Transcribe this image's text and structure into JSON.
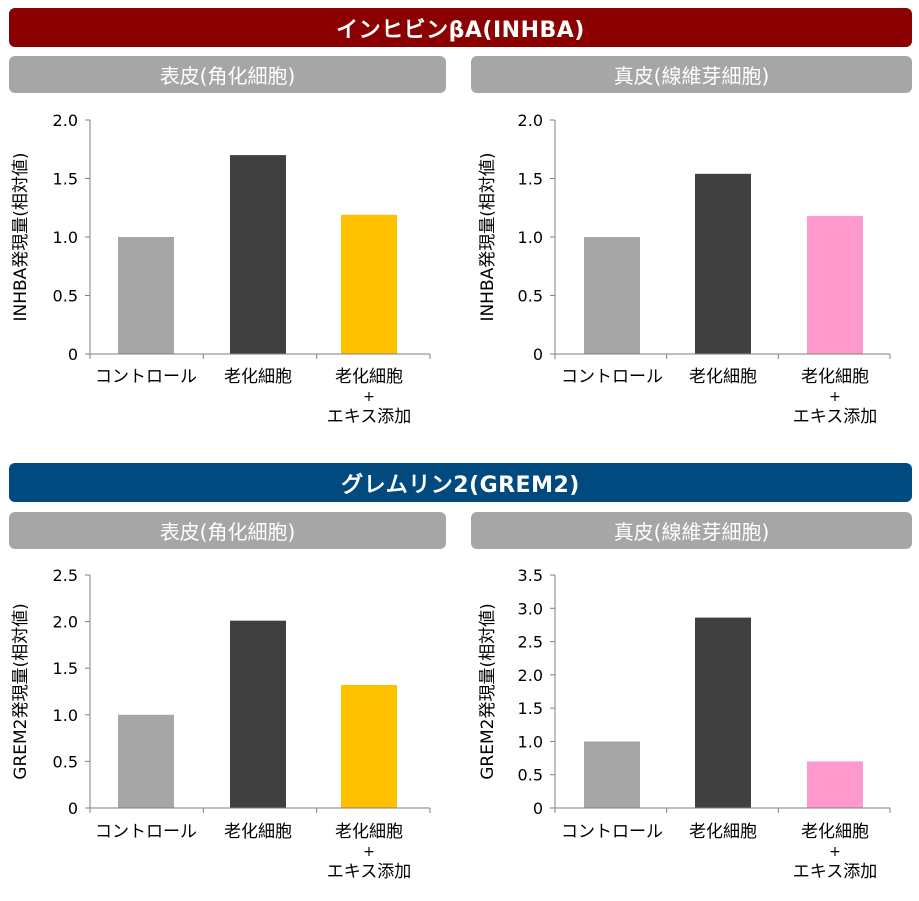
{
  "sections": [
    {
      "title": "インヒビンβA(INHBA)",
      "color": "#8b0000",
      "panels": [
        {
          "label": "表皮(角化細胞)",
          "ylabel": "INHBA発現量(相対値)"
        },
        {
          "label": "真皮(線維芽細胞)",
          "ylabel": "INHBA発現量(相対値)"
        }
      ]
    },
    {
      "title": "グレムリン2(GREM2)",
      "color": "#004a80",
      "panels": [
        {
          "label": "表皮(角化細胞)",
          "ylabel": "GREM2発現量(相対値)"
        },
        {
          "label": "真皮(線維芽細胞)",
          "ylabel": "GREM2発現量(相対値)"
        }
      ]
    }
  ],
  "panel_label_color": "#a6a6a6",
  "chart_data": [
    {
      "type": "bar",
      "section": "インヒビンβA(INHBA)",
      "panel": "表皮(角化細胞)",
      "categories": [
        "コントロール",
        "老化細胞",
        "老化細胞\n+\nエキス添加"
      ],
      "values": [
        1.0,
        1.7,
        1.19
      ],
      "colors": [
        "#a6a6a6",
        "#404040",
        "#ffc000"
      ],
      "ylabel": "INHBA発現量(相対値)",
      "ylim": [
        0,
        2.0
      ],
      "yticks": [
        "0",
        "0.5",
        "1.0",
        "1.5",
        "2.0"
      ],
      "grid": false
    },
    {
      "type": "bar",
      "section": "インヒビンβA(INHBA)",
      "panel": "真皮(線維芽細胞)",
      "categories": [
        "コントロール",
        "老化細胞",
        "老化細胞\n+\nエキス添加"
      ],
      "values": [
        1.0,
        1.54,
        1.18
      ],
      "colors": [
        "#a6a6a6",
        "#404040",
        "#ff99cc"
      ],
      "ylabel": "INHBA発現量(相対値)",
      "ylim": [
        0,
        2.0
      ],
      "yticks": [
        "0",
        "0.5",
        "1.0",
        "1.5",
        "2.0"
      ],
      "grid": false
    },
    {
      "type": "bar",
      "section": "グレムリン2(GREM2)",
      "panel": "表皮(角化細胞)",
      "categories": [
        "コントロール",
        "老化細胞",
        "老化細胞\n+\nエキス添加"
      ],
      "values": [
        1.0,
        2.01,
        1.32
      ],
      "colors": [
        "#a6a6a6",
        "#404040",
        "#ffc000"
      ],
      "ylabel": "GREM2発現量(相対値)",
      "ylim": [
        0,
        2.5
      ],
      "yticks": [
        "0",
        "0.5",
        "1.0",
        "1.5",
        "2.0",
        "2.5"
      ],
      "grid": false
    },
    {
      "type": "bar",
      "section": "グレムリン2(GREM2)",
      "panel": "真皮(線維芽細胞)",
      "categories": [
        "コントロール",
        "老化細胞",
        "老化細胞\n+\nエキス添加"
      ],
      "values": [
        1.0,
        2.86,
        0.7
      ],
      "colors": [
        "#a6a6a6",
        "#404040",
        "#ff99cc"
      ],
      "ylabel": "GREM2発現量(相対値)",
      "ylim": [
        0,
        3.5
      ],
      "yticks": [
        "0",
        "0.5",
        "1.0",
        "1.5",
        "2.0",
        "2.5",
        "3.0",
        "3.5"
      ],
      "grid": false
    }
  ]
}
